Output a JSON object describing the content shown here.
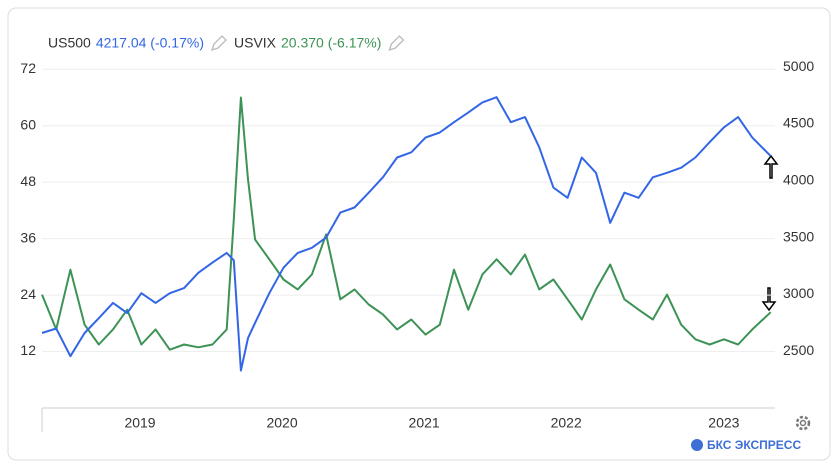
{
  "chart_data": {
    "type": "line",
    "x": [
      2018.8,
      2018.9,
      2019.0,
      2019.1,
      2019.2,
      2019.3,
      2019.4,
      2019.5,
      2019.6,
      2019.7,
      2019.8,
      2019.9,
      2020.0,
      2020.1,
      2020.15,
      2020.2,
      2020.25,
      2020.3,
      2020.4,
      2020.5,
      2020.6,
      2020.7,
      2020.8,
      2020.9,
      2021.0,
      2021.1,
      2021.2,
      2021.3,
      2021.4,
      2021.5,
      2021.6,
      2021.7,
      2021.8,
      2021.9,
      2022.0,
      2022.1,
      2022.2,
      2022.3,
      2022.4,
      2022.5,
      2022.6,
      2022.7,
      2022.8,
      2022.9,
      2023.0,
      2023.1,
      2023.2,
      2023.3,
      2023.4,
      2023.5,
      2023.6,
      2023.7,
      2023.8,
      2023.93
    ],
    "series": [
      {
        "name": "US500",
        "last_label": "4217.04 (-0.17%)",
        "color": "#3366e6",
        "axis": "y2",
        "values": [
          2660,
          2700,
          2456,
          2660,
          2790,
          2925,
          2835,
          3010,
          2925,
          3010,
          3055,
          3190,
          3280,
          3365,
          3300,
          2330,
          2615,
          2750,
          3010,
          3235,
          3365,
          3410,
          3500,
          3720,
          3765,
          3895,
          4030,
          4205,
          4250,
          4380,
          4425,
          4515,
          4600,
          4690,
          4735,
          4515,
          4560,
          4295,
          3940,
          3850,
          4205,
          4070,
          3630,
          3895,
          3850,
          4030,
          4070,
          4115,
          4205,
          4340,
          4470,
          4560,
          4380,
          4217
        ]
      },
      {
        "name": "USVIX",
        "last_label": "20.370 (-6.17%)",
        "color": "#3d9256",
        "values": [
          24.1,
          16.7,
          29.4,
          17.7,
          13.5,
          16.7,
          20.9,
          13.5,
          16.7,
          12.4,
          13.5,
          12.9,
          13.5,
          16.7,
          40.1,
          66.0,
          48.6,
          35.8,
          31.6,
          27.3,
          25.2,
          28.4,
          36.9,
          23.1,
          25.2,
          22.0,
          19.9,
          16.7,
          18.8,
          15.6,
          17.7,
          29.4,
          20.9,
          28.4,
          31.6,
          28.4,
          32.6,
          25.2,
          27.3,
          23.1,
          18.8,
          25.2,
          30.5,
          23.1,
          20.9,
          18.8,
          24.1,
          17.7,
          14.6,
          13.5,
          14.6,
          13.5,
          16.7,
          20.37
        ]
      }
    ],
    "xlim": [
      2018.8,
      2023.96
    ],
    "xticks": [
      {
        "value": 2019.49,
        "label": "2019"
      },
      {
        "value": 2020.49,
        "label": "2020"
      },
      {
        "value": 2021.49,
        "label": "2021"
      },
      {
        "value": 2022.49,
        "label": "2022"
      },
      {
        "value": 2023.6,
        "label": "2023"
      }
    ],
    "ylim": [
      0,
      78
    ],
    "yticks": [
      12,
      24,
      36,
      48,
      60,
      72
    ],
    "y2lim": [
      2000,
      5230
    ],
    "y2ticks": [
      2500,
      3000,
      3500,
      4000,
      4500,
      5000
    ],
    "brand": "БКС ЭКСПРЕСС"
  }
}
